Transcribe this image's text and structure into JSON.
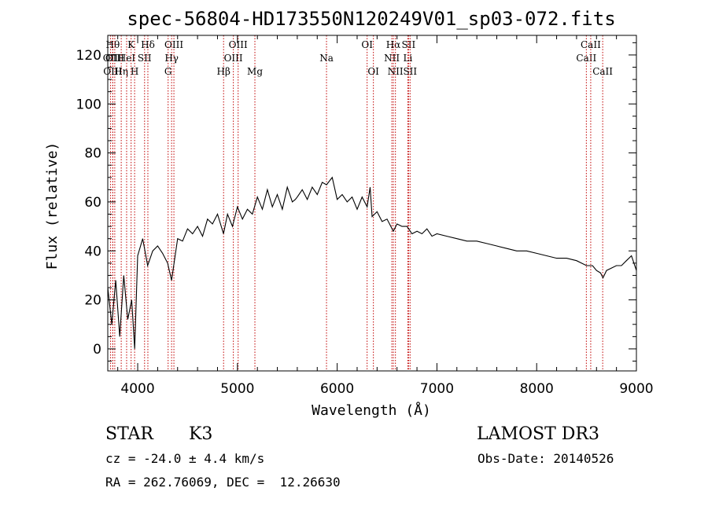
{
  "chart_data": {
    "type": "line",
    "title": "spec-56804-HD173550N120249V01_sp03-072.fits",
    "xlabel": "Wavelength (Å)",
    "ylabel": "Flux (relative)",
    "xlim": [
      3700,
      9000
    ],
    "ylim": [
      -9,
      128
    ],
    "x_ticks": [
      4000,
      5000,
      6000,
      7000,
      8000,
      9000
    ],
    "y_ticks": [
      0,
      20,
      40,
      60,
      80,
      100,
      120
    ],
    "grid": false,
    "series": [
      {
        "x": [
          3700,
          3740,
          3780,
          3820,
          3860,
          3900,
          3940,
          3970,
          4000,
          4050,
          4100,
          4150,
          4200,
          4250,
          4300,
          4340,
          4400,
          4450,
          4500,
          4550,
          4600,
          4650,
          4700,
          4750,
          4800,
          4860,
          4900,
          4950,
          5000,
          5050,
          5100,
          5150,
          5200,
          5250,
          5300,
          5350,
          5400,
          5450,
          5500,
          5550,
          5580,
          5600,
          5650,
          5700,
          5750,
          5800,
          5850,
          5893,
          5950,
          6000,
          6050,
          6100,
          6150,
          6200,
          6250,
          6300,
          6330,
          6350,
          6400,
          6450,
          6500,
          6563,
          6600,
          6650,
          6700,
          6750,
          6800,
          6850,
          6900,
          6950,
          7000,
          7100,
          7200,
          7300,
          7400,
          7500,
          7600,
          7700,
          7800,
          7900,
          8000,
          8100,
          8200,
          8300,
          8400,
          8500,
          8560,
          8600,
          8640,
          8665,
          8700,
          8750,
          8800,
          8850,
          8900,
          8950,
          9000
        ],
        "y": [
          25,
          10,
          28,
          5,
          30,
          12,
          20,
          0,
          38,
          45,
          34,
          40,
          42,
          39,
          35,
          28,
          45,
          44,
          49,
          47,
          50,
          46,
          53,
          51,
          55,
          47,
          55,
          50,
          58,
          53,
          57,
          55,
          62,
          57,
          65,
          58,
          63,
          57,
          66,
          60,
          61,
          62,
          65,
          61,
          66,
          63,
          68,
          67,
          70,
          61,
          63,
          60,
          62,
          57,
          62,
          58,
          66,
          54,
          56,
          52,
          53,
          48,
          51,
          50,
          50,
          47,
          48,
          47,
          49,
          46,
          47,
          46,
          45,
          44,
          44,
          43,
          42,
          41,
          40,
          40,
          39,
          38,
          37,
          37,
          36,
          34,
          34,
          32,
          31,
          29,
          32,
          33,
          34,
          34,
          36,
          38,
          32
        ]
      }
    ],
    "line_markers": [
      {
        "name": "OII",
        "x": 3727,
        "row": 1
      },
      {
        "name": "Hθ",
        "x": 3750,
        "row": 0
      },
      {
        "name": "OIII",
        "x": 3750,
        "row": 2
      },
      {
        "name": "OIII",
        "x": 3770,
        "row": 1
      },
      {
        "name": "Hη",
        "x": 3835,
        "row": 2
      },
      {
        "name": "HeI",
        "x": 3889,
        "row": 1
      },
      {
        "name": "K",
        "x": 3934,
        "row": 0
      },
      {
        "name": "SII",
        "x": 4069,
        "row": 1
      },
      {
        "name": "H",
        "x": 3969,
        "row": 2
      },
      {
        "name": "Hδ",
        "x": 4102,
        "row": 0
      },
      {
        "name": "G",
        "x": 4305,
        "row": 2
      },
      {
        "name": "OIII",
        "x": 4363,
        "row": 0
      },
      {
        "name": "Hγ",
        "x": 4340,
        "row": 1
      },
      {
        "name": "Hβ",
        "x": 4861,
        "row": 2
      },
      {
        "name": "OIII",
        "x": 4959,
        "row": 1
      },
      {
        "name": "OIII",
        "x": 5007,
        "row": 0
      },
      {
        "name": "Mg",
        "x": 5175,
        "row": 2
      },
      {
        "name": "Na",
        "x": 5893,
        "row": 1
      },
      {
        "name": "OI",
        "x": 6300,
        "row": 0
      },
      {
        "name": "OI",
        "x": 6363,
        "row": 2
      },
      {
        "name": "NII",
        "x": 6548,
        "row": 1
      },
      {
        "name": "Hα",
        "x": 6563,
        "row": 0
      },
      {
        "name": "NII",
        "x": 6584,
        "row": 2
      },
      {
        "name": "SII",
        "x": 6716,
        "row": 0
      },
      {
        "name": "Li",
        "x": 6708,
        "row": 1
      },
      {
        "name": "SII",
        "x": 6731,
        "row": 2
      },
      {
        "name": "CaII",
        "x": 8498,
        "row": 1
      },
      {
        "name": "CaII",
        "x": 8542,
        "row": 0
      },
      {
        "name": "CaII",
        "x": 8662,
        "row": 2
      }
    ]
  },
  "info": {
    "class": "STAR",
    "subclass": "K3",
    "survey": "LAMOST DR3",
    "cz": "cz = -24.0 ± 4.4 km/s",
    "obs_date": "Obs-Date: 20140526",
    "coords": "RA = 262.76069, DEC =  12.26630"
  }
}
